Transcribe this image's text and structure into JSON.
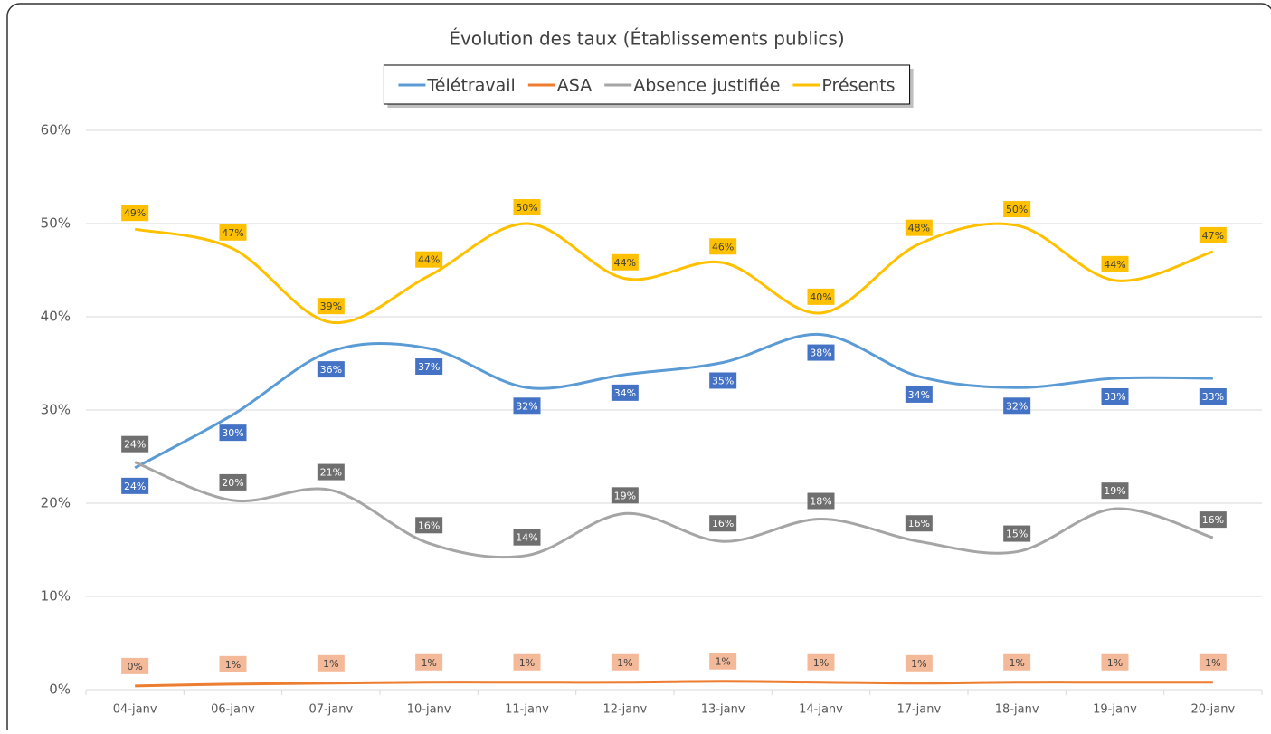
{
  "chart_data": {
    "type": "line",
    "title": "Évolution des taux (Établissements publics)",
    "categories": [
      "04-janv",
      "06-janv",
      "07-janv",
      "10-janv",
      "11-janv",
      "12-janv",
      "13-janv",
      "14-janv",
      "17-janv",
      "18-janv",
      "19-janv",
      "20-janv"
    ],
    "ylim": [
      0,
      60
    ],
    "yticks": [
      {
        "value": 0,
        "label": "0%"
      },
      {
        "value": 10,
        "label": "10%"
      },
      {
        "value": 20,
        "label": "20%"
      },
      {
        "value": 30,
        "label": "30%"
      },
      {
        "value": 40,
        "label": "40%"
      },
      {
        "value": 50,
        "label": "50%"
      },
      {
        "value": 60,
        "label": "60%"
      }
    ],
    "grid": true,
    "legend": "top",
    "series": [
      {
        "name": "Télétravail",
        "color": "#5b9bd5",
        "values": [
          23.8,
          29.5,
          36.3,
          36.6,
          32.4,
          33.8,
          35.1,
          38.1,
          33.6,
          32.4,
          33.4,
          33.4
        ],
        "value_labels": [
          "24%",
          "30%",
          "36%",
          "37%",
          "32%",
          "34%",
          "35%",
          "38%",
          "34%",
          "32%",
          "33%",
          "33%"
        ]
      },
      {
        "name": "ASA",
        "color": "#ed7d31",
        "values": [
          0.4,
          0.6,
          0.7,
          0.8,
          0.8,
          0.8,
          0.9,
          0.8,
          0.7,
          0.8,
          0.8,
          0.8
        ],
        "value_labels": [
          "0%",
          "1%",
          "1%",
          "1%",
          "1%",
          "1%",
          "1%",
          "1%",
          "1%",
          "1%",
          "1%",
          "1%"
        ]
      },
      {
        "name": "Absence justifiée",
        "color": "#a5a5a5",
        "values": [
          24.4,
          20.3,
          21.4,
          15.7,
          14.4,
          18.9,
          15.9,
          18.3,
          15.9,
          14.8,
          19.4,
          16.3
        ],
        "value_labels": [
          "24%",
          "20%",
          "21%",
          "16%",
          "14%",
          "19%",
          "16%",
          "18%",
          "16%",
          "15%",
          "19%",
          "16%"
        ]
      },
      {
        "name": "Présents",
        "color": "#ffc000",
        "values": [
          49.4,
          47.3,
          39.4,
          44.4,
          50.0,
          44.1,
          45.8,
          40.4,
          47.8,
          49.8,
          43.9,
          47.0
        ],
        "value_labels": [
          "49%",
          "47%",
          "39%",
          "44%",
          "50%",
          "44%",
          "46%",
          "40%",
          "48%",
          "50%",
          "44%",
          "47%"
        ]
      }
    ]
  }
}
